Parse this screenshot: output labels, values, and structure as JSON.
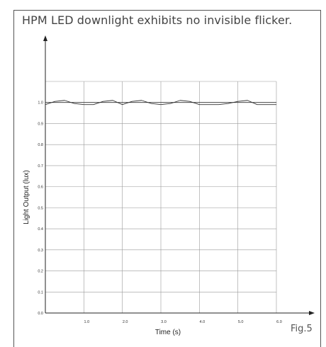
{
  "figure": {
    "caption": "HPM LED downlight exhibits no invisible flicker.",
    "label": "Fig.5"
  },
  "chart_data": {
    "type": "line",
    "title": "",
    "xlabel": "Time (s)",
    "ylabel": "Light Output (lux)",
    "xlim": [
      0,
      6.0
    ],
    "ylim": [
      0,
      1.1
    ],
    "x_ticks": [
      "1.0",
      "2.0",
      "3.0",
      "4.0",
      "5.0",
      "6.0"
    ],
    "y_ticks": [
      "0.0",
      "0.1",
      "0.2",
      "0.3",
      "0.4",
      "0.5",
      "0.6",
      "0.7",
      "0.8",
      "0.9",
      "1.0"
    ],
    "grid": true,
    "series": [
      {
        "name": "",
        "color": "#333333",
        "x": [
          0.0,
          0.25,
          0.5,
          0.75,
          1.0,
          1.25,
          1.5,
          1.75,
          2.0,
          2.25,
          2.5,
          2.75,
          3.0,
          3.25,
          3.5,
          3.75,
          4.0,
          4.25,
          4.5,
          4.75,
          5.0,
          5.25,
          5.5,
          5.75,
          6.0
        ],
        "y": [
          0.99,
          1.005,
          1.01,
          0.995,
          0.99,
          0.99,
          1.005,
          1.01,
          0.99,
          1.005,
          1.01,
          0.995,
          0.99,
          0.995,
          1.01,
          1.005,
          0.99,
          0.99,
          0.99,
          0.995,
          1.005,
          1.01,
          0.99,
          0.99,
          0.99
        ]
      },
      {
        "name": "",
        "color": "#333333",
        "x": [
          0.0,
          6.0
        ],
        "y": [
          1.0,
          1.0
        ]
      }
    ]
  }
}
